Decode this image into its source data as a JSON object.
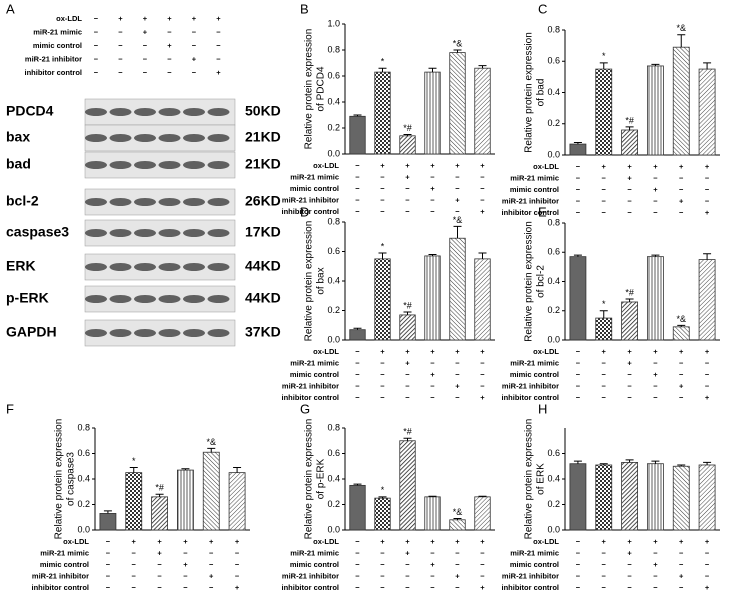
{
  "panel_a": {
    "letter": "A",
    "blot": [
      {
        "protein": "PDCD4",
        "size": "50KD"
      },
      {
        "protein": "bax",
        "size": "21KD"
      },
      {
        "protein": "bad",
        "size": "21KD"
      },
      {
        "protein": "bcl-2",
        "size": "26KD"
      },
      {
        "protein": "caspase3",
        "size": "17KD"
      },
      {
        "protein": "ERK",
        "size": "44KD"
      },
      {
        "protein": "p-ERK",
        "size": "44KD"
      },
      {
        "protein": "GAPDH",
        "size": "37KD"
      }
    ]
  },
  "treatments": {
    "rows": [
      "ox-LDL",
      "miR-21 mimic",
      "mimic control",
      "miR-21 inhibitor",
      "inhibitor control"
    ],
    "signs": [
      [
        "−",
        "+",
        "+",
        "+",
        "+",
        "+"
      ],
      [
        "−",
        "−",
        "+",
        "−",
        "−",
        "−"
      ],
      [
        "−",
        "−",
        "−",
        "+",
        "−",
        "−"
      ],
      [
        "−",
        "−",
        "−",
        "−",
        "+",
        "−"
      ],
      [
        "−",
        "−",
        "−",
        "−",
        "−",
        "+"
      ]
    ]
  },
  "chart_data": [
    {
      "type": "bar",
      "panel": "B",
      "y_label": [
        "Relative protein expression",
        "of PDCD4"
      ],
      "values": [
        0.29,
        0.63,
        0.14,
        0.63,
        0.78,
        0.66
      ],
      "errors": [
        0.01,
        0.03,
        0.01,
        0.03,
        0.02,
        0.02
      ],
      "annotations": [
        null,
        "*",
        "*#",
        null,
        "*&",
        null
      ],
      "ylim": [
        0,
        1.0
      ],
      "yticks": [
        {
          "value": 0,
          "label": "0.0"
        },
        0.2,
        0.4,
        0.6,
        0.8,
        {
          "value": 1.0,
          "label": "1.0"
        }
      ]
    },
    {
      "type": "bar",
      "panel": "C",
      "y_label": [
        "Relative protein expression",
        "of bad"
      ],
      "values": [
        0.07,
        0.55,
        0.16,
        0.57,
        0.69,
        0.55
      ],
      "errors": [
        0.01,
        0.04,
        0.02,
        0.01,
        0.08,
        0.04
      ],
      "annotations": [
        null,
        "*",
        "*#",
        null,
        "*&",
        null
      ],
      "ylim": [
        0,
        0.8
      ],
      "yticks": [
        {
          "value": 0,
          "label": "0.0"
        },
        0.2,
        0.4,
        0.6,
        0.8
      ]
    },
    {
      "type": "bar",
      "panel": "D",
      "y_label": [
        "Relative protein expression",
        "of bax"
      ],
      "values": [
        0.07,
        0.55,
        0.17,
        0.57,
        0.69,
        0.55
      ],
      "errors": [
        0.01,
        0.04,
        0.02,
        0.01,
        0.08,
        0.04
      ],
      "annotations": [
        null,
        "*",
        "*#",
        null,
        "*&",
        null
      ],
      "ylim": [
        0,
        0.8
      ],
      "yticks": [
        {
          "value": 0,
          "label": "0.0"
        },
        0.2,
        0.4,
        0.6,
        0.8
      ]
    },
    {
      "type": "bar",
      "panel": "E",
      "y_label": [
        "Relative protein expression",
        "of bcl-2"
      ],
      "values": [
        0.57,
        0.15,
        0.26,
        0.57,
        0.09,
        0.55
      ],
      "errors": [
        0.01,
        0.05,
        0.02,
        0.01,
        0.01,
        0.04
      ],
      "annotations": [
        null,
        "*",
        "*#",
        null,
        "*&",
        null
      ],
      "ylim": [
        0,
        0.8
      ],
      "yticks": [
        {
          "value": 0,
          "label": "0.0"
        },
        0.2,
        0.4,
        0.6,
        0.8
      ]
    },
    {
      "type": "bar",
      "panel": "F",
      "y_label": [
        "Relative protein expression",
        "of caspase3"
      ],
      "values": [
        0.13,
        0.45,
        0.26,
        0.47,
        0.61,
        0.45
      ],
      "errors": [
        0.02,
        0.04,
        0.02,
        0.01,
        0.03,
        0.04
      ],
      "annotations": [
        null,
        "*",
        "*#",
        null,
        "*&",
        null
      ],
      "ylim": [
        0,
        0.8
      ],
      "yticks": [
        {
          "value": 0,
          "label": "0.0"
        },
        0.2,
        0.4,
        0.6,
        0.8
      ]
    },
    {
      "type": "bar",
      "panel": "G",
      "y_label": [
        "Relative protein expression",
        "of p-ERK"
      ],
      "values": [
        0.35,
        0.25,
        0.7,
        0.26,
        0.08,
        0.26
      ],
      "errors": [
        0.01,
        0.01,
        0.02,
        0.005,
        0.01,
        0.005
      ],
      "annotations": [
        null,
        "*",
        "*#",
        null,
        "*&",
        null
      ],
      "ylim": [
        0,
        0.8
      ],
      "yticks": [
        {
          "value": 0,
          "label": "0.0"
        },
        0.2,
        0.4,
        0.6,
        0.8
      ]
    },
    {
      "type": "bar",
      "panel": "H",
      "y_label": [
        "Relative protein expression",
        "of ERK"
      ],
      "values": [
        0.52,
        0.51,
        0.53,
        0.52,
        0.5,
        0.51
      ],
      "errors": [
        0.02,
        0.01,
        0.02,
        0.02,
        0.01,
        0.02
      ],
      "annotations": [
        null,
        null,
        null,
        null,
        null,
        null
      ],
      "ylim": [
        0,
        0.8
      ],
      "yticks": [
        {
          "value": 0,
          "label": "0.0"
        },
        0.2,
        0.4,
        0.6
      ]
    }
  ]
}
